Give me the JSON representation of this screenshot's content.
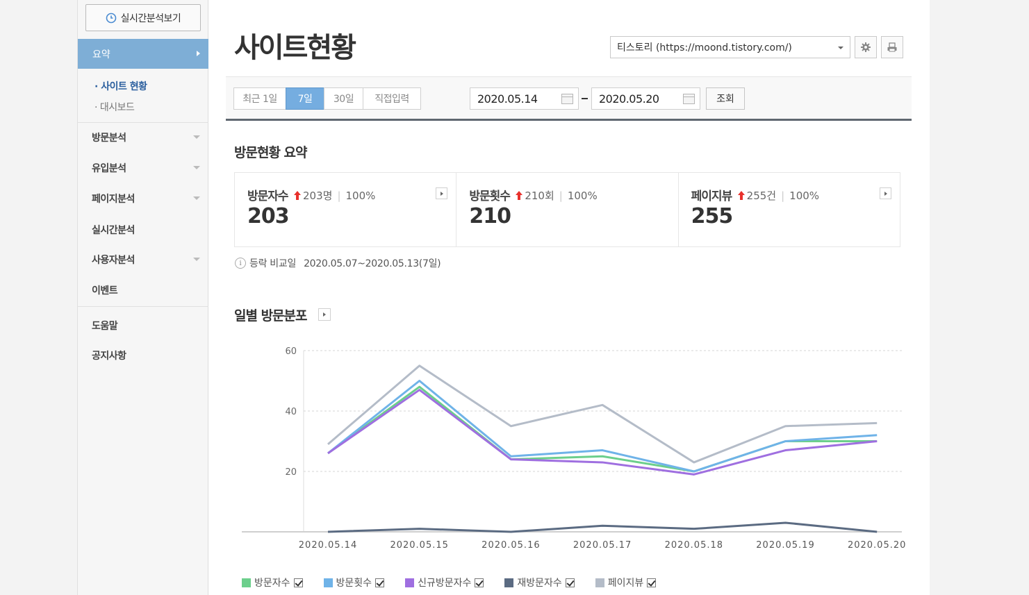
{
  "sidebar": {
    "realtime_button": "실시간분석보기",
    "summary_label": "요약",
    "sub_items": [
      "· 사이트 현황",
      "· 대시보드"
    ],
    "menu": [
      "방문분석",
      "유입분석",
      "페이지분석",
      "실시간분석",
      "사용자분석",
      "이벤트"
    ],
    "menu2": [
      "도움말",
      "공지사항"
    ]
  },
  "header": {
    "title": "사이트현황",
    "site_select": "티스토리 (https://moond.tistory.com/)"
  },
  "filter": {
    "periods": [
      "최근 1일",
      "7일",
      "30일",
      "직접입력"
    ],
    "active_period": "7일",
    "start_date": "2020.05.14",
    "end_date": "2020.05.20",
    "search_label": "조회"
  },
  "summary": {
    "title": "방문현황 요약",
    "cards": [
      {
        "label": "방문자수",
        "delta": "203명",
        "pct": "100%",
        "value": "203"
      },
      {
        "label": "방문횟수",
        "delta": "210회",
        "pct": "100%",
        "value": "210"
      },
      {
        "label": "페이지뷰",
        "delta": "255건",
        "pct": "100%",
        "value": "255"
      }
    ],
    "compare_label": "등락 비교일",
    "compare_range": "2020.05.07~2020.05.13(7일)"
  },
  "daily": {
    "title": "일별 방문분포"
  },
  "chart_data": {
    "type": "line",
    "categories": [
      "2020.05.14",
      "2020.05.15",
      "2020.05.16",
      "2020.05.17",
      "2020.05.18",
      "2020.05.19",
      "2020.05.20"
    ],
    "ylim": [
      0,
      60
    ],
    "yticks": [
      20,
      40,
      60
    ],
    "grid": true,
    "legend_position": "bottom",
    "series": [
      {
        "name": "방문자수",
        "color": "#6ccf8c",
        "values": [
          26,
          48,
          24,
          25,
          20,
          30,
          30
        ]
      },
      {
        "name": "방문횟수",
        "color": "#6fb3e8",
        "values": [
          26,
          50,
          25,
          27,
          20,
          30,
          32
        ]
      },
      {
        "name": "신규방문자수",
        "color": "#9f6fe0",
        "values": [
          26,
          47,
          24,
          23,
          19,
          27,
          30
        ]
      },
      {
        "name": "재방문자수",
        "color": "#5b6b82",
        "values": [
          0,
          1,
          0,
          2,
          1,
          3,
          0
        ]
      },
      {
        "name": "페이지뷰",
        "color": "#b4bcc8",
        "values": [
          29,
          55,
          35,
          42,
          23,
          35,
          36
        ]
      }
    ]
  }
}
